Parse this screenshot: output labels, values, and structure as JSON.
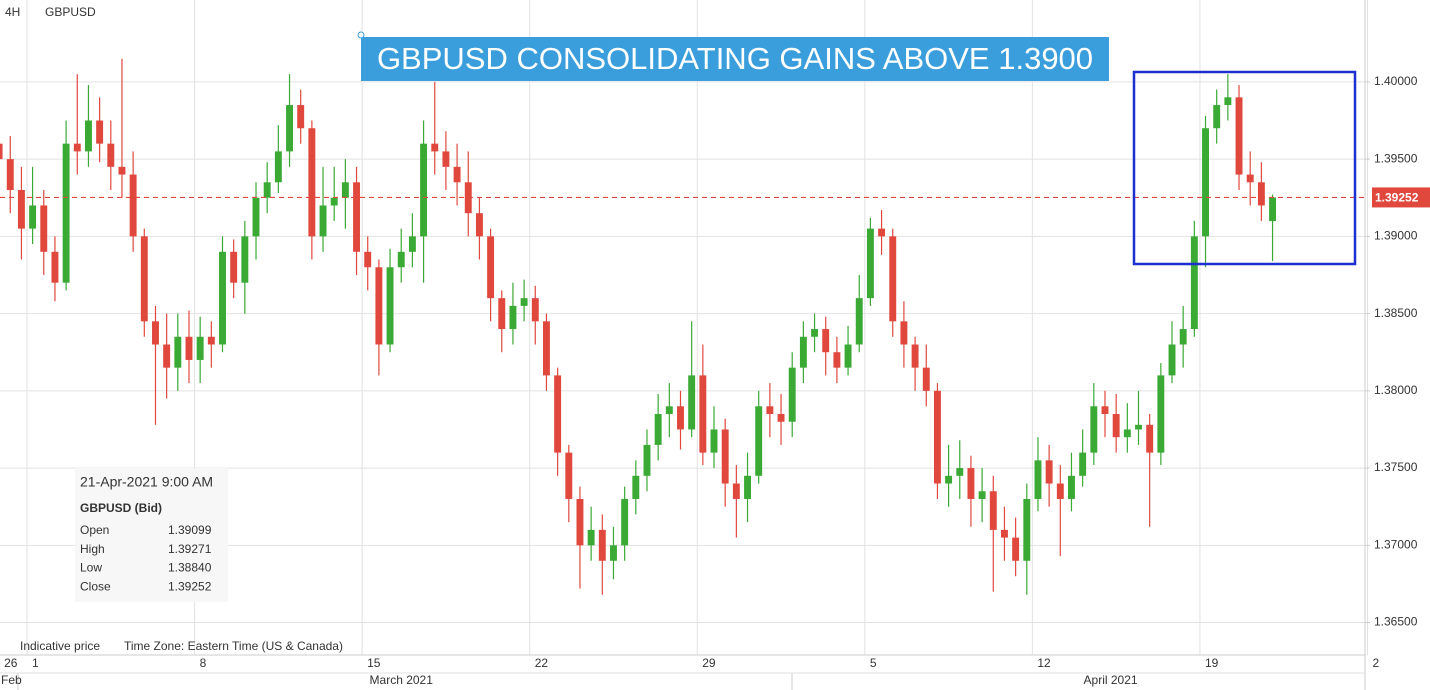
{
  "chart_data": {
    "type": "candlestick",
    "timeframe": "4H",
    "symbol": "GBPUSD",
    "title": "GBPUSD CONSOLIDATING GAINS ABOVE 1.3900",
    "up_color": "#3aaa35",
    "down_color": "#e0483e",
    "grid": true,
    "ylim": [
      1.3629,
      1.4053
    ],
    "yticks": [
      {
        "value": 1.365,
        "label": "1.36500"
      },
      {
        "value": 1.37,
        "label": "1.37000"
      },
      {
        "value": 1.375,
        "label": "1.37500"
      },
      {
        "value": 1.38,
        "label": "1.38000"
      },
      {
        "value": 1.385,
        "label": "1.38500"
      },
      {
        "value": 1.39,
        "label": "1.39000"
      },
      {
        "value": 1.395,
        "label": "1.39500"
      },
      {
        "value": 1.4,
        "label": "1.40000"
      }
    ],
    "xlim": [
      -0.5,
      122.5
    ],
    "xticks": [
      {
        "value": 0,
        "label": "26"
      },
      {
        "value": 2.5,
        "label": "1"
      },
      {
        "value": 17.5,
        "label": "8"
      },
      {
        "value": 32.5,
        "label": "15"
      },
      {
        "value": 47.5,
        "label": "22"
      },
      {
        "value": 62.5,
        "label": "29"
      },
      {
        "value": 77.5,
        "label": "5"
      },
      {
        "value": 92.5,
        "label": "12"
      },
      {
        "value": 107.5,
        "label": "19"
      },
      {
        "value": 122.5,
        "label": "2"
      }
    ],
    "month_ticks": [
      {
        "value": 0,
        "label": "Feb"
      },
      {
        "value": 36,
        "label": "March 2021"
      },
      {
        "value": 99.5,
        "label": "April 2021"
      }
    ],
    "open": [
      1.396,
      1.395,
      1.393,
      1.3905,
      1.392,
      1.389,
      1.387,
      1.396,
      1.3955,
      1.3975,
      1.396,
      1.3945,
      1.394,
      1.39,
      1.3845,
      1.383,
      1.3815,
      1.3835,
      1.382,
      1.3835,
      1.383,
      1.389,
      1.387,
      1.39,
      1.3925,
      1.3935,
      1.3955,
      1.3985,
      1.397,
      1.39,
      1.392,
      1.3925,
      1.3935,
      1.389,
      1.388,
      1.383,
      1.388,
      1.389,
      1.39,
      1.396,
      1.3955,
      1.3945,
      1.3935,
      1.3915,
      1.39,
      1.386,
      1.384,
      1.3855,
      1.386,
      1.3845,
      1.381,
      1.376,
      1.373,
      1.37,
      1.371,
      1.369,
      1.37,
      1.373,
      1.3745,
      1.3765,
      1.3785,
      1.379,
      1.3775,
      1.381,
      1.376,
      1.3775,
      1.374,
      1.373,
      1.3745,
      1.379,
      1.3785,
      1.378,
      1.3815,
      1.3835,
      1.384,
      1.3825,
      1.3815,
      1.383,
      1.386,
      1.3905,
      1.39,
      1.3845,
      1.383,
      1.3815,
      1.38,
      1.374,
      1.3745,
      1.375,
      1.373,
      1.3735,
      1.371,
      1.3705,
      1.369,
      1.373,
      1.3755,
      1.374,
      1.373,
      1.3745,
      1.376,
      1.379,
      1.3785,
      1.377,
      1.3775,
      1.3778,
      1.376,
      1.381,
      1.383,
      1.384,
      1.39,
      1.397,
      1.3985,
      1.399,
      1.394,
      1.3935,
      1.39099
    ],
    "high": [
      1.3985,
      1.3965,
      1.3945,
      1.3945,
      1.393,
      1.39,
      1.3975,
      1.4005,
      1.3998,
      1.399,
      1.3975,
      1.4015,
      1.3955,
      1.3905,
      1.3855,
      1.385,
      1.385,
      1.3852,
      1.3848,
      1.3845,
      1.39,
      1.3898,
      1.391,
      1.3935,
      1.3948,
      1.3972,
      1.4005,
      1.3995,
      1.3975,
      1.3945,
      1.3945,
      1.395,
      1.3945,
      1.39,
      1.3885,
      1.3892,
      1.3905,
      1.3915,
      1.3975,
      1.4,
      1.3968,
      1.396,
      1.3955,
      1.3925,
      1.3905,
      1.3865,
      1.387,
      1.3872,
      1.3868,
      1.385,
      1.3815,
      1.3765,
      1.3738,
      1.3725,
      1.372,
      1.3712,
      1.3738,
      1.3755,
      1.3775,
      1.3798,
      1.3805,
      1.38,
      1.3845,
      1.383,
      1.379,
      1.3782,
      1.3752,
      1.376,
      1.38,
      1.3805,
      1.3798,
      1.3825,
      1.3845,
      1.385,
      1.3848,
      1.3835,
      1.3842,
      1.3875,
      1.3912,
      1.3917,
      1.3905,
      1.3858,
      1.3835,
      1.383,
      1.3805,
      1.3765,
      1.3768,
      1.3758,
      1.375,
      1.3745,
      1.3725,
      1.3718,
      1.374,
      1.377,
      1.3765,
      1.3752,
      1.376,
      1.3775,
      1.3805,
      1.38,
      1.3798,
      1.3792,
      1.38,
      1.3785,
      1.3818,
      1.3845,
      1.3855,
      1.391,
      1.3978,
      1.3995,
      1.4005,
      1.3998,
      1.3955,
      1.3948,
      1.39271
    ],
    "low": [
      1.3935,
      1.3915,
      1.3885,
      1.3895,
      1.3875,
      1.3858,
      1.3865,
      1.394,
      1.3945,
      1.3948,
      1.393,
      1.3925,
      1.389,
      1.3835,
      1.3778,
      1.3795,
      1.38,
      1.3805,
      1.3805,
      1.3815,
      1.3825,
      1.386,
      1.385,
      1.3885,
      1.3915,
      1.3928,
      1.3945,
      1.396,
      1.3885,
      1.389,
      1.391,
      1.3905,
      1.3875,
      1.3865,
      1.381,
      1.3825,
      1.387,
      1.388,
      1.387,
      1.394,
      1.393,
      1.392,
      1.39,
      1.3885,
      1.3845,
      1.3825,
      1.383,
      1.3845,
      1.383,
      1.38,
      1.3745,
      1.3715,
      1.3672,
      1.369,
      1.3668,
      1.3678,
      1.369,
      1.372,
      1.3735,
      1.3755,
      1.377,
      1.3762,
      1.377,
      1.3752,
      1.375,
      1.3725,
      1.3705,
      1.3715,
      1.374,
      1.377,
      1.3765,
      1.377,
      1.3805,
      1.3825,
      1.381,
      1.3805,
      1.381,
      1.3825,
      1.3855,
      1.3888,
      1.3835,
      1.3815,
      1.38,
      1.379,
      1.373,
      1.3725,
      1.373,
      1.3712,
      1.3715,
      1.367,
      1.369,
      1.368,
      1.3668,
      1.3722,
      1.3725,
      1.3693,
      1.3722,
      1.3738,
      1.3752,
      1.377,
      1.376,
      1.376,
      1.3765,
      1.3712,
      1.3752,
      1.3805,
      1.3815,
      1.3835,
      1.388,
      1.396,
      1.3975,
      1.393,
      1.392,
      1.391,
      1.3884
    ],
    "close": [
      1.395,
      1.393,
      1.3905,
      1.392,
      1.389,
      1.387,
      1.396,
      1.3955,
      1.3975,
      1.396,
      1.3945,
      1.394,
      1.39,
      1.3845,
      1.383,
      1.3815,
      1.3835,
      1.382,
      1.3835,
      1.383,
      1.389,
      1.387,
      1.39,
      1.3925,
      1.3935,
      1.3955,
      1.3985,
      1.397,
      1.39,
      1.392,
      1.3925,
      1.3935,
      1.389,
      1.388,
      1.383,
      1.388,
      1.389,
      1.39,
      1.396,
      1.3955,
      1.3945,
      1.3935,
      1.3915,
      1.39,
      1.386,
      1.384,
      1.3855,
      1.386,
      1.3845,
      1.381,
      1.376,
      1.373,
      1.37,
      1.371,
      1.369,
      1.37,
      1.373,
      1.3745,
      1.3765,
      1.3785,
      1.379,
      1.3775,
      1.381,
      1.376,
      1.3775,
      1.374,
      1.373,
      1.3745,
      1.379,
      1.3785,
      1.378,
      1.3815,
      1.3835,
      1.384,
      1.3825,
      1.3815,
      1.383,
      1.386,
      1.3905,
      1.39,
      1.3845,
      1.383,
      1.3815,
      1.38,
      1.374,
      1.3745,
      1.375,
      1.373,
      1.3735,
      1.371,
      1.3705,
      1.369,
      1.373,
      1.3755,
      1.374,
      1.373,
      1.3745,
      1.376,
      1.379,
      1.3785,
      1.377,
      1.3775,
      1.3778,
      1.376,
      1.381,
      1.383,
      1.384,
      1.39,
      1.397,
      1.3985,
      1.399,
      1.394,
      1.3935,
      1.392,
      1.39252
    ],
    "info": {
      "date": "21-Apr-2021 9:00 AM",
      "heading": "GBPUSD (Bid)",
      "rows": [
        [
          "Open",
          "1.39099"
        ],
        [
          "High",
          "1.39271"
        ],
        [
          "Low",
          "1.38840"
        ],
        [
          "Close",
          "1.39252"
        ]
      ]
    },
    "footer": [
      "Indicative price",
      "Time Zone: Eastern Time (US & Canada)"
    ]
  }
}
